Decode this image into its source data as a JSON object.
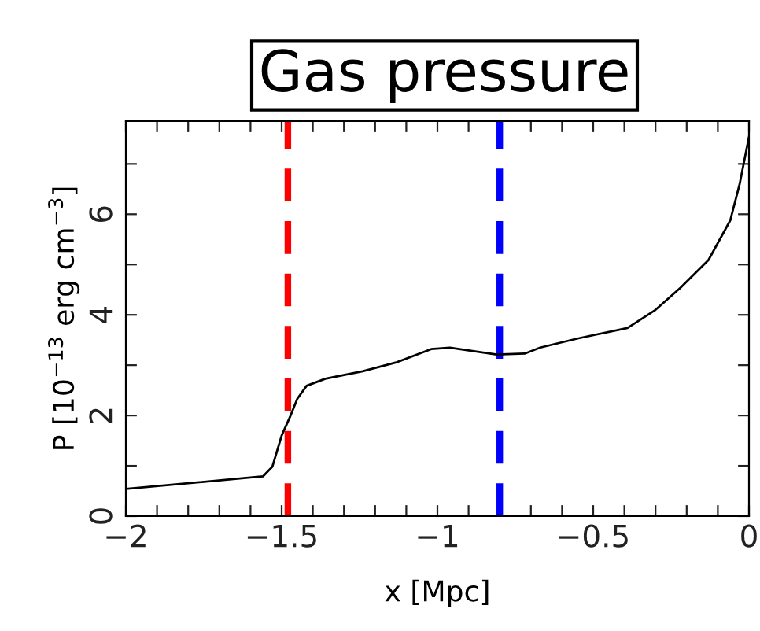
{
  "chart_data": {
    "type": "line",
    "title": "Gas pressure",
    "xlabel": "x [Mpc]",
    "ylabel": "P [10$^{−13}$ erg cm$^{−3}$]",
    "series": [
      {
        "color": "#000000",
        "x": [
          -2,
          -1.56,
          -1.53,
          -1.5,
          -1.47,
          -1.45,
          -1.42,
          -1.36,
          -1.24,
          -1.13,
          -1.02,
          -0.96,
          -0.81,
          -0.72,
          -0.67,
          -0.55,
          -0.39,
          -0.3,
          -0.22,
          -0.13,
          -0.06,
          -0.03,
          0
        ],
        "values": [
          0.54,
          0.79,
          0.98,
          1.6,
          2.02,
          2.33,
          2.59,
          2.73,
          2.88,
          3.06,
          3.32,
          3.35,
          3.21,
          3.23,
          3.35,
          3.53,
          3.74,
          4.1,
          4.54,
          5.09,
          5.88,
          6.6,
          7.54
        ]
      }
    ],
    "xlim": [
      -2,
      0
    ],
    "ylim": [
      0,
      7.85
    ],
    "xticks": [
      -2,
      -1.5,
      -1,
      -0.5,
      0,
      {
        "value": -1.9,
        "label": null
      },
      {
        "value": -1.8,
        "label": null
      },
      {
        "value": -1.7,
        "label": null
      },
      {
        "value": -1.6,
        "label": null
      },
      {
        "value": -1.4,
        "label": null
      },
      {
        "value": -1.3,
        "label": null
      },
      {
        "value": -1.2,
        "label": null
      },
      {
        "value": -1.1,
        "label": null
      },
      {
        "value": -0.9,
        "label": null
      },
      {
        "value": -0.8,
        "label": null
      },
      {
        "value": -0.7,
        "label": null
      },
      {
        "value": -0.6,
        "label": null
      },
      {
        "value": -0.4,
        "label": null
      },
      {
        "value": -0.3,
        "label": null
      },
      {
        "value": -0.2,
        "label": null
      },
      {
        "value": -0.1,
        "label": null
      }
    ],
    "yticks": [
      0,
      2,
      4,
      6,
      {
        "value": 1,
        "label": null
      },
      {
        "value": 3,
        "label": null
      },
      {
        "value": 5,
        "label": null
      },
      {
        "value": 7,
        "label": null
      }
    ],
    "ref_lines": [
      {
        "axis": "x",
        "value": -1.48,
        "color": "#ff0000",
        "line_style": "dashed"
      },
      {
        "axis": "x",
        "value": -0.8,
        "color": "#0000ff",
        "line_style": "dashed"
      }
    ],
    "grid": false,
    "legend": false,
    "marker": "none",
    "line_style": "solid"
  }
}
